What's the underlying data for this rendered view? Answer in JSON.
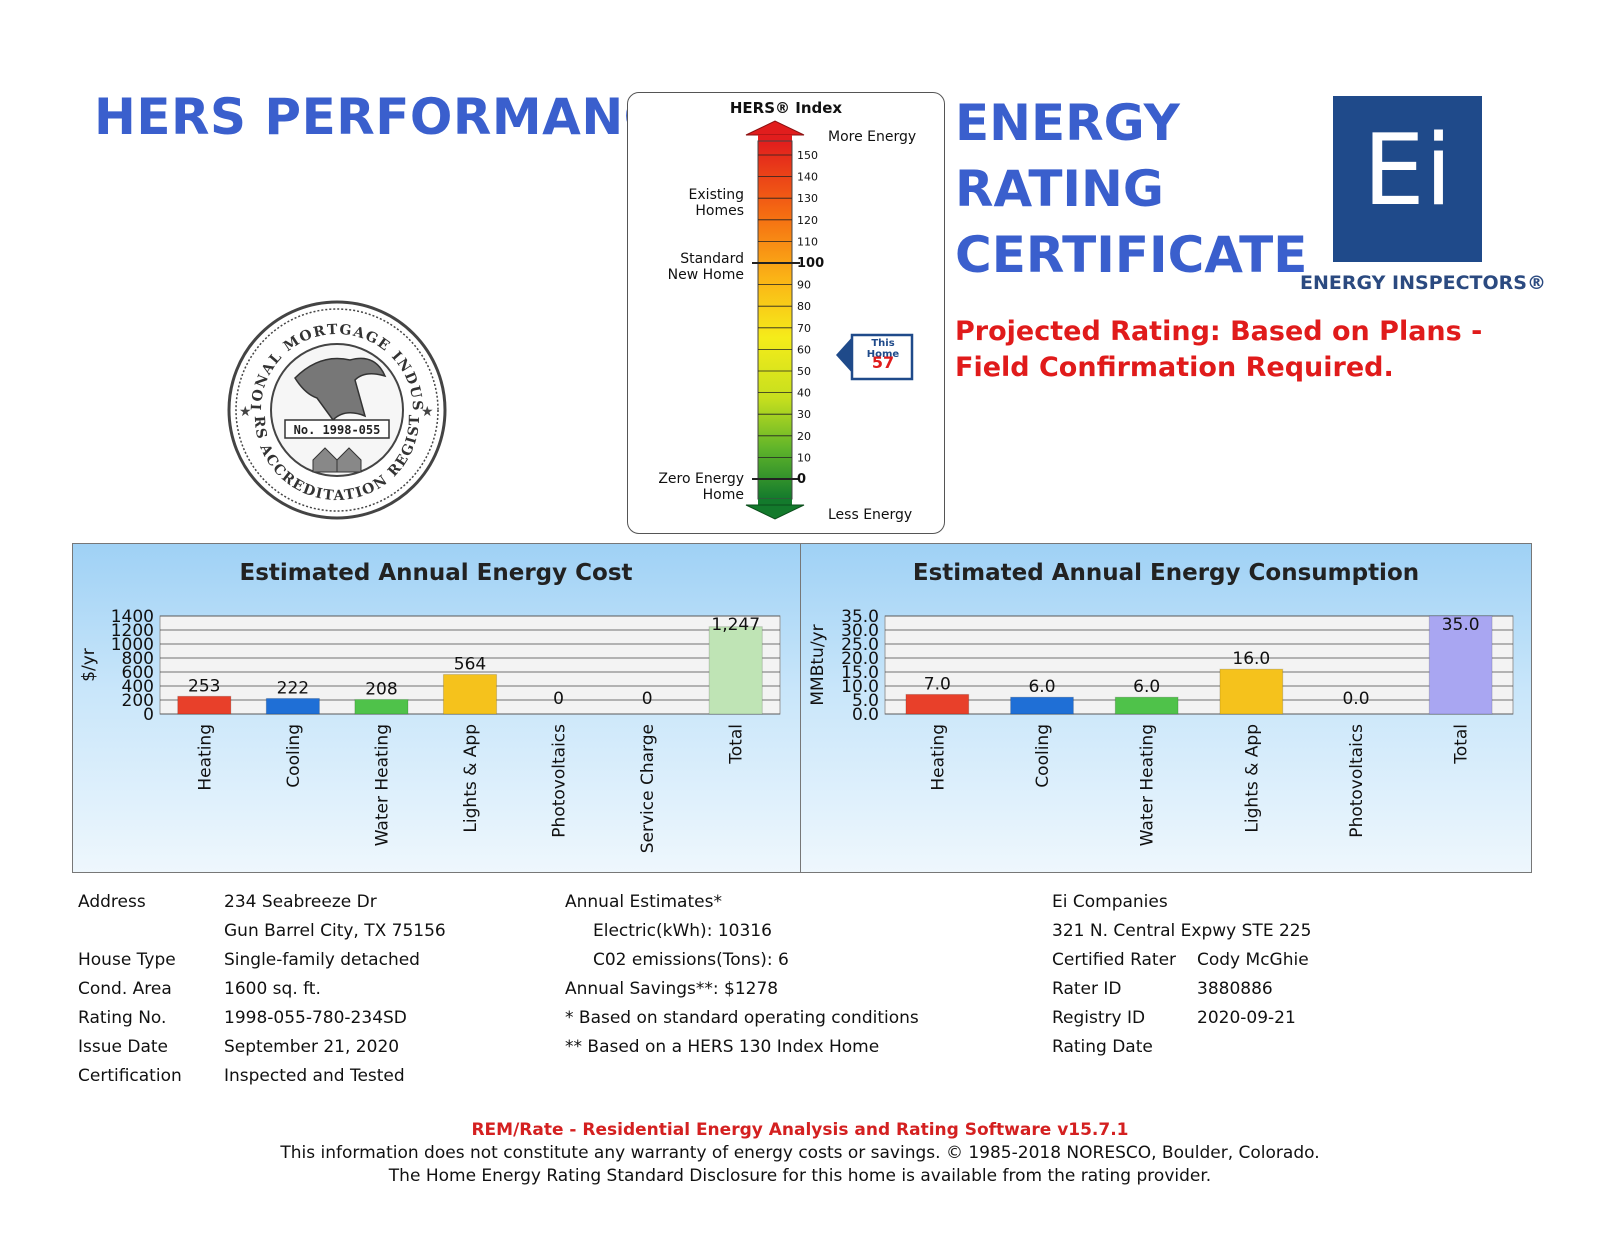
{
  "header": {
    "left_title": "HERS PERFORMANCE",
    "right_title_lines": [
      "ENERGY",
      "RATING",
      "CERTIFICATE"
    ],
    "projected_note": "Projected Rating: Based on Plans - Field Confirmation Required.",
    "logo_letters": "Ei",
    "logo_caption": "ENERGY INSPECTORS®"
  },
  "seal": {
    "top_text": "NATIONAL MORTGAGE INDUSTRY",
    "bottom_text": "HERS ACCREDITATION REGISTRY",
    "number": "No. 1998-055"
  },
  "hers_index": {
    "title": "HERS® Index",
    "more_energy": "More Energy",
    "less_energy": "Less Energy",
    "existing_homes": "Existing Homes",
    "standard_new_home": "Standard New Home",
    "zero_energy_home": "Zero Energy Home",
    "ticks": [
      "150",
      "140",
      "130",
      "120",
      "110",
      "100",
      "90",
      "80",
      "70",
      "60",
      "50",
      "40",
      "30",
      "20",
      "10",
      "0"
    ],
    "this_home_label": "This Home",
    "this_home_value": 57
  },
  "cost_chart": {
    "title": "Estimated Annual Energy Cost",
    "ylabel": "$/yr"
  },
  "consumption_chart": {
    "title": "Estimated Annual Energy Consumption",
    "ylabel": "MMBtu/yr"
  },
  "chart_data": [
    {
      "type": "bar",
      "title": "Estimated Annual Energy Cost",
      "ylabel": "$/yr",
      "ylim": [
        0,
        1400
      ],
      "yticks": [
        "0",
        "200",
        "400",
        "600",
        "800",
        "1000",
        "1200",
        "1400"
      ],
      "categories": [
        "Heating",
        "Cooling",
        "Water Heating",
        "Lights & App",
        "Photovoltaics",
        "Service Charge",
        "Total"
      ],
      "values": [
        253,
        222,
        208,
        564,
        0,
        0,
        1247
      ],
      "value_labels": [
        "253",
        "222",
        "208",
        "564",
        "0",
        "0",
        "1,247"
      ],
      "colors": [
        "#e8402a",
        "#1f6fd6",
        "#4fc24a",
        "#f5c21c",
        "#999999",
        "#999999",
        "#bfe4b5"
      ]
    },
    {
      "type": "bar",
      "title": "Estimated Annual Energy Consumption",
      "ylabel": "MMBtu/yr",
      "ylim": [
        0,
        35
      ],
      "yticks": [
        "0.0",
        "5.0",
        "10.0",
        "15.0",
        "20.0",
        "25.0",
        "30.0",
        "35.0"
      ],
      "categories": [
        "Heating",
        "Cooling",
        "Water Heating",
        "Lights & App",
        "Photovoltaics",
        "Total"
      ],
      "values": [
        7.0,
        6.0,
        6.0,
        16.0,
        0.0,
        35.0
      ],
      "value_labels": [
        "7.0",
        "6.0",
        "6.0",
        "16.0",
        "0.0",
        "35.0"
      ],
      "colors": [
        "#e8402a",
        "#1f6fd6",
        "#4fc24a",
        "#f5c21c",
        "#999999",
        "#a9a6f2"
      ]
    }
  ],
  "property": {
    "address_label": "Address",
    "address_line1": "234 Seabreeze Dr",
    "address_line2": "Gun Barrel City, TX 75156",
    "house_type_label": "House Type",
    "house_type": "Single-family detached",
    "cond_area_label": "Cond. Area",
    "cond_area": "1600 sq. ft.",
    "rating_no_label": "Rating No.",
    "rating_no": "1998-055-780-234SD",
    "issue_date_label": "Issue Date",
    "issue_date": "September 21, 2020",
    "certification_label": "Certification",
    "certification": "Inspected and Tested"
  },
  "estimates": {
    "heading": "Annual Estimates*",
    "electric": "Electric(kWh):  10316",
    "co2": "C02 emissions(Tons): 6",
    "savings": "Annual Savings**:  $1278",
    "note1": "* Based on standard operating conditions",
    "note2": "** Based on a HERS 130 Index Home"
  },
  "rater": {
    "company": "Ei Companies",
    "street": "321 N. Central Expwy STE 225",
    "certified_rater_label": "Certified Rater",
    "certified_rater": "Cody McGhie",
    "rater_id_label": "Rater ID",
    "rater_id": "3880886",
    "registry_id_label": "Registry ID",
    "registry_id": "",
    "rating_date_label": "Rating Date",
    "rating_date": "2020-09-21"
  },
  "footer": {
    "software": "REM/Rate - Residential Energy Analysis and Rating Software v15.7.1",
    "disclaimer": "This information does not constitute any warranty of energy costs or savings. © 1985-2018 NORESCO, Boulder, Colorado.",
    "disclosure": "The Home Energy Rating Standard Disclosure for this home is available from the rating provider."
  }
}
